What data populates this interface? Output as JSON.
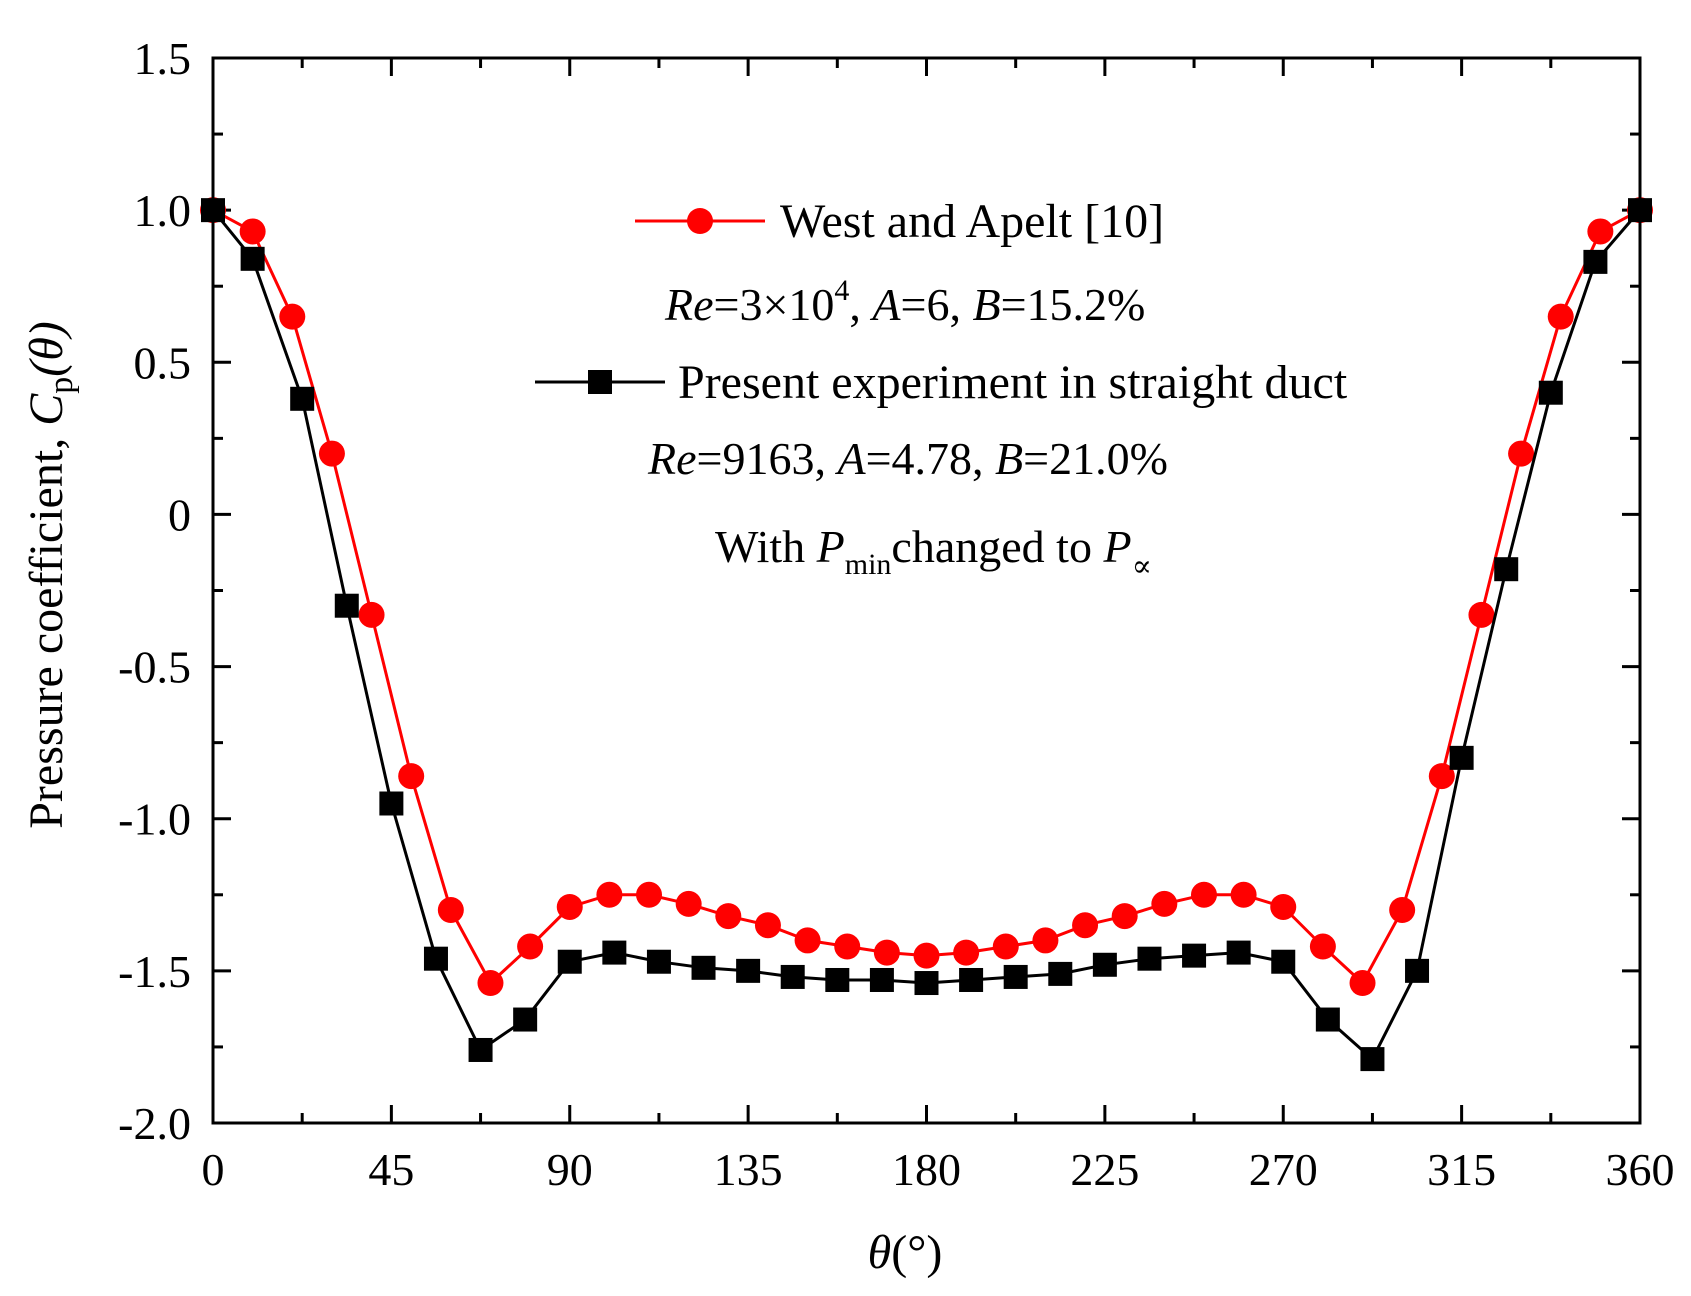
{
  "chart_data": {
    "type": "line",
    "xlabel": {
      "symbol": "θ",
      "unit": "(°)"
    },
    "ylabel": {
      "text": "Pressure coefficient, ",
      "symbol": "C",
      "sub": "p",
      "arg": "(θ)"
    },
    "xlim": [
      0,
      360
    ],
    "ylim": [
      -2.0,
      1.5
    ],
    "xticks": [
      0,
      45,
      90,
      135,
      180,
      225,
      270,
      315,
      360
    ],
    "xtick_labels": [
      "0",
      "45",
      "90",
      "135",
      "180",
      "225",
      "270",
      "315",
      "360"
    ],
    "yticks": [
      1.5,
      1.0,
      0.5,
      0,
      -0.5,
      -1.0,
      -1.5,
      -2.0
    ],
    "ytick_labels": [
      "1.5",
      "1.0",
      "0.5",
      "0",
      "-0.5",
      "-1.0",
      "-1.5",
      "-2.0"
    ],
    "series": [
      {
        "name": "West and Apelt [10]",
        "color": "#ff0000",
        "marker": "circle",
        "x": [
          0,
          10,
          20,
          30,
          40,
          50,
          60,
          70,
          80,
          90,
          100,
          110,
          120,
          130,
          140,
          150,
          160,
          170,
          180,
          190,
          200,
          210,
          220,
          230,
          240,
          250,
          260,
          270,
          280,
          290,
          300,
          310,
          320,
          330,
          340,
          350,
          360
        ],
        "values": [
          1.0,
          0.93,
          0.65,
          0.2,
          -0.33,
          -0.86,
          -1.3,
          -1.54,
          -1.42,
          -1.29,
          -1.25,
          -1.25,
          -1.28,
          -1.32,
          -1.35,
          -1.4,
          -1.42,
          -1.44,
          -1.45,
          -1.44,
          -1.42,
          -1.4,
          -1.35,
          -1.32,
          -1.28,
          -1.25,
          -1.25,
          -1.29,
          -1.42,
          -1.54,
          -1.3,
          -0.86,
          -0.33,
          0.2,
          0.65,
          0.93,
          1.0
        ]
      },
      {
        "name": "Present experiment in straight duct",
        "color": "#000000",
        "marker": "square",
        "x": [
          0,
          10,
          22.5,
          33.75,
          45,
          56.25,
          67.5,
          78.75,
          90,
          101.25,
          112.5,
          123.75,
          135,
          146.25,
          157.5,
          168.75,
          180,
          191.25,
          202.5,
          213.75,
          225,
          236.25,
          247.5,
          258.75,
          270,
          281.25,
          292.5,
          303.75,
          315,
          326.25,
          337.5,
          348.75,
          360
        ],
        "values": [
          1.0,
          0.84,
          0.38,
          -0.3,
          -0.95,
          -1.46,
          -1.76,
          -1.66,
          -1.47,
          -1.44,
          -1.47,
          -1.49,
          -1.5,
          -1.52,
          -1.53,
          -1.53,
          -1.54,
          -1.53,
          -1.52,
          -1.51,
          -1.48,
          -1.46,
          -1.45,
          -1.44,
          -1.47,
          -1.66,
          -1.79,
          -1.5,
          -0.8,
          -0.18,
          0.4,
          0.83,
          1.0
        ]
      }
    ],
    "legend": {
      "entries": [
        "West and Apelt [10]",
        "Present experiment in straight duct"
      ],
      "line1": {
        "re": "Re",
        "eq": "=3×10",
        "sup": "4",
        "sep1": ", ",
        "a": "A",
        "aval": "=6",
        "sep2": ", ",
        "b": "B",
        "bval": "=15.2%"
      },
      "line2": {
        "re": "Re",
        "eq": "=9163",
        "sep1": ", ",
        "a": "A",
        "aval": "=4.78",
        "sep2": ", ",
        "b": "B",
        "bval": "=21.0%"
      },
      "note": {
        "pre": "With ",
        "p1": "P",
        "sub1": "min",
        "mid": "changed to ",
        "p2": "P",
        "sub2": "∝"
      }
    }
  }
}
